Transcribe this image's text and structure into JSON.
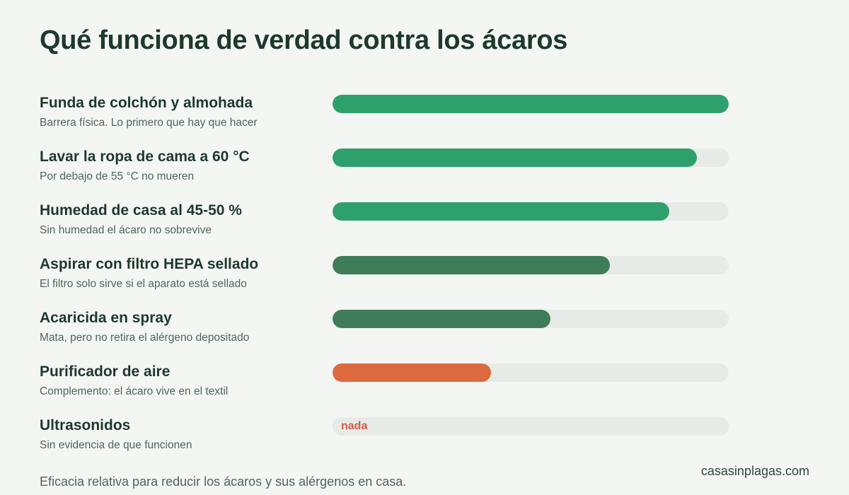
{
  "title": "Qué funciona de verdad contra los ácaros",
  "footnote": "Eficacia relativa para reducir los ácaros y sus alérgenos en casa.",
  "brand": "casasinplagas.com",
  "colors": {
    "background": "#f4f6f3",
    "track": "#e7ebe7",
    "high": "#2ea06c",
    "medium": "#3e7c5a",
    "low": "#dd6a3f",
    "none_text": "#d45a47"
  },
  "chart_data": {
    "type": "bar",
    "orientation": "horizontal",
    "title": "Qué funciona de verdad contra los ácaros",
    "xlim": [
      0,
      100
    ],
    "categories": [
      "Funda de colchón y almohada",
      "Lavar la ropa de cama a 60 °C",
      "Humedad de casa al 45-50 %",
      "Aspirar con filtro HEPA sellado",
      "Acaricida en spray",
      "Purificador de aire",
      "Ultrasonidos"
    ],
    "values": [
      100,
      92,
      85,
      70,
      55,
      40,
      0
    ],
    "items": [
      {
        "label": "Funda de colchón y almohada",
        "sub": "Barrera física. Lo primero que hay que hacer",
        "value": 100,
        "color": "#2ea06c"
      },
      {
        "label": "Lavar la ropa de cama a 60 °C",
        "sub": "Por debajo de 55 °C no mueren",
        "value": 92,
        "color": "#2ea06c"
      },
      {
        "label": "Humedad de casa al 45-50 %",
        "sub": "Sin humedad el ácaro no sobrevive",
        "value": 85,
        "color": "#2ea06c"
      },
      {
        "label": "Aspirar con filtro HEPA sellado",
        "sub": "El filtro solo sirve si el aparato está sellado",
        "value": 70,
        "color": "#3e7c5a"
      },
      {
        "label": "Acaricida en spray",
        "sub": "Mata, pero no retira el alérgeno depositado",
        "value": 55,
        "color": "#3e7c5a"
      },
      {
        "label": "Purificador de aire",
        "sub": "Complemento: el ácaro vive en el textil",
        "value": 40,
        "color": "#dd6a3f"
      },
      {
        "label": "Ultrasonidos",
        "sub": "Sin evidencia de que funcionen",
        "value": 0,
        "color": "#dd6a3f",
        "value_label": "nada"
      }
    ]
  }
}
